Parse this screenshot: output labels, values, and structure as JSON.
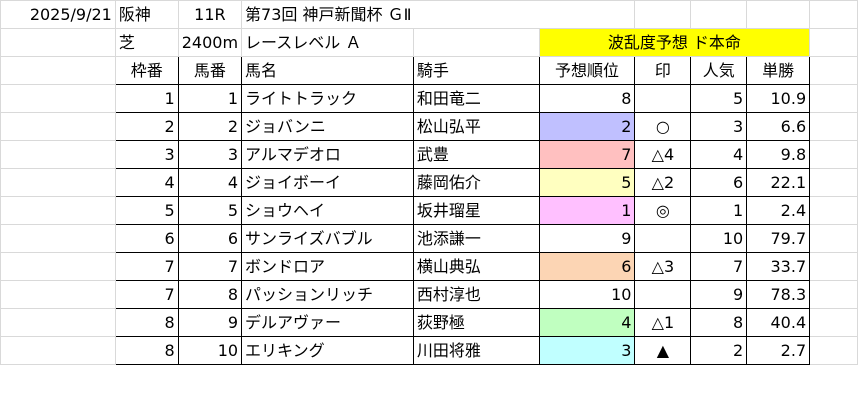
{
  "sheet": {
    "info_row1": {
      "date": "2025/9/21",
      "venue": "阪神",
      "race_no": "11R",
      "race_name": "第73回 神戸新聞杯 ＧⅡ"
    },
    "info_row2": {
      "surface": "芝",
      "distance": "2400m",
      "level": "レースレベル Ａ",
      "banner": "波乱度予想 ド本命"
    },
    "headers": {
      "waku": "枠番",
      "umaban": "馬番",
      "horse": "馬名",
      "jockey": "騎手",
      "pred_rank": "予想順位",
      "mark": "印",
      "popularity": "人気",
      "odds": "単勝"
    },
    "rows": [
      {
        "waku": "1",
        "umaban": "1",
        "horse": "ライトトラック",
        "jockey": "和田竜二",
        "pred_rank": "8",
        "mark": "",
        "popularity": "5",
        "odds": "10.9",
        "rank_color": "#ffffff"
      },
      {
        "waku": "2",
        "umaban": "2",
        "horse": "ジョバンニ",
        "jockey": "松山弘平",
        "pred_rank": "2",
        "mark": "○",
        "popularity": "3",
        "odds": "6.6",
        "rank_color": "#c0c0ff"
      },
      {
        "waku": "3",
        "umaban": "3",
        "horse": "アルマデオロ",
        "jockey": "武豊",
        "pred_rank": "7",
        "mark": "△4",
        "popularity": "4",
        "odds": "9.8",
        "rank_color": "#ffc0c0"
      },
      {
        "waku": "4",
        "umaban": "4",
        "horse": "ジョイボーイ",
        "jockey": "藤岡佑介",
        "pred_rank": "5",
        "mark": "△2",
        "popularity": "6",
        "odds": "22.1",
        "rank_color": "#ffffc0"
      },
      {
        "waku": "5",
        "umaban": "5",
        "horse": "ショウヘイ",
        "jockey": "坂井瑠星",
        "pred_rank": "1",
        "mark": "◎",
        "popularity": "1",
        "odds": "2.4",
        "rank_color": "#ffc0ff"
      },
      {
        "waku": "6",
        "umaban": "6",
        "horse": "サンライズバブル",
        "jockey": "池添謙一",
        "pred_rank": "9",
        "mark": "",
        "popularity": "10",
        "odds": "79.7",
        "rank_color": "#ffffff"
      },
      {
        "waku": "7",
        "umaban": "7",
        "horse": "ボンドロア",
        "jockey": "横山典弘",
        "pred_rank": "6",
        "mark": "△3",
        "popularity": "7",
        "odds": "33.7",
        "rank_color": "#fcd5b4"
      },
      {
        "waku": "7",
        "umaban": "8",
        "horse": "パッションリッチ",
        "jockey": "西村淳也",
        "pred_rank": "10",
        "mark": "",
        "popularity": "9",
        "odds": "78.3",
        "rank_color": "#ffffff"
      },
      {
        "waku": "8",
        "umaban": "9",
        "horse": "デルアヴァー",
        "jockey": "荻野極",
        "pred_rank": "4",
        "mark": "△1",
        "popularity": "8",
        "odds": "40.4",
        "rank_color": "#c0ffc0"
      },
      {
        "waku": "8",
        "umaban": "10",
        "horse": "エリキング",
        "jockey": "川田将雅",
        "pred_rank": "3",
        "mark": "▲",
        "popularity": "2",
        "odds": "2.7",
        "rank_color": "#c0ffff"
      }
    ]
  }
}
